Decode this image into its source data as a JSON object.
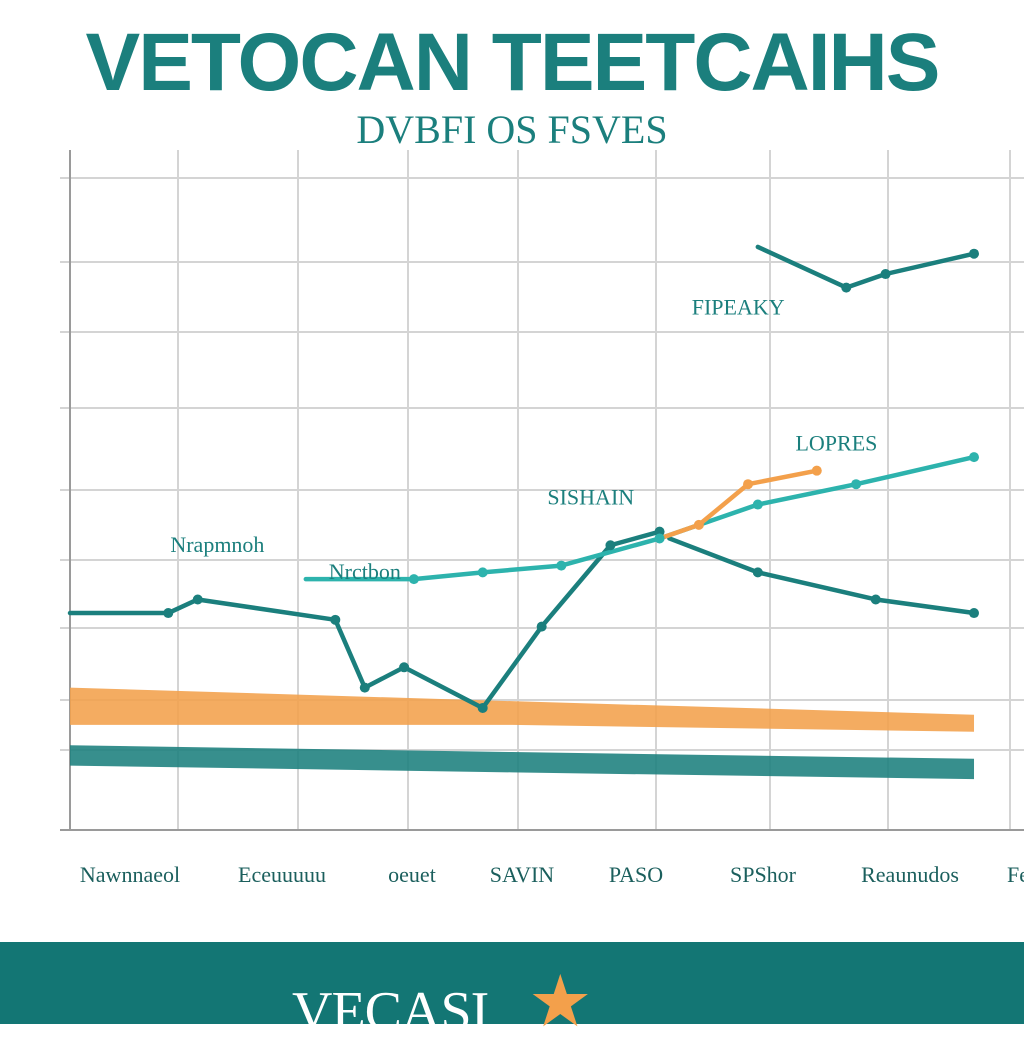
{
  "header": {
    "title": "VETOCAN TEETCAIHS",
    "subtitle": "DVBFI OS FSVES"
  },
  "footer": {
    "brand": "VECASI",
    "star_icon": "star-icon"
  },
  "colors": {
    "teal": "#1b7f7d",
    "teal_light": "#2db3ad",
    "orange": "#f3a04b",
    "grid": "#d4d4d4",
    "footer_bg": "#137674"
  },
  "chart_data": {
    "type": "line",
    "title": "VETOCAN TEETCAIHS",
    "subtitle": "DVBFI OS FSVES",
    "xlabel": "",
    "ylabel": "",
    "grid": true,
    "xlim": [
      0,
      10
    ],
    "ylim": [
      0,
      10
    ],
    "x_tick_labels": [
      "Nawnnaeol",
      "Eceuuuuu",
      "oeuet",
      "SAVIN",
      "PASO",
      "SPShor",
      "Reaunudos",
      "Fe"
    ],
    "annotations": [
      {
        "text": "Nrapmnoh",
        "x": 1.5,
        "y": 4.1
      },
      {
        "text": "Nrctbon",
        "x": 3.0,
        "y": 3.7
      },
      {
        "text": "SISHAIN",
        "x": 5.3,
        "y": 4.8
      },
      {
        "text": "FIPEAKY",
        "x": 6.8,
        "y": 7.6
      },
      {
        "text": "LOPRES",
        "x": 7.8,
        "y": 5.6
      }
    ],
    "series": [
      {
        "color": "#1b7f7d",
        "role": "main-line",
        "points": [
          [
            0.0,
            3.2
          ],
          [
            1.0,
            3.2
          ],
          [
            1.3,
            3.4
          ],
          [
            2.7,
            3.1
          ],
          [
            3.0,
            2.1
          ],
          [
            3.4,
            2.4
          ],
          [
            4.2,
            1.8
          ],
          [
            4.8,
            3.0
          ],
          [
            5.5,
            4.2
          ],
          [
            6.0,
            4.4
          ]
        ]
      },
      {
        "color": "#1b7f7d",
        "role": "right-line",
        "points": [
          [
            6.1,
            4.3
          ],
          [
            7.0,
            3.8
          ],
          [
            8.2,
            3.4
          ],
          [
            9.2,
            3.2
          ]
        ]
      },
      {
        "color": "#1b7f7d",
        "role": "top-line",
        "points": [
          [
            7.0,
            8.6
          ],
          [
            7.9,
            8.0
          ],
          [
            8.3,
            8.2
          ],
          [
            9.2,
            8.5
          ]
        ]
      },
      {
        "color": "#2db3ad",
        "role": "upper-line",
        "points": [
          [
            2.4,
            3.7
          ],
          [
            3.5,
            3.7
          ],
          [
            4.2,
            3.8
          ],
          [
            5.0,
            3.9
          ],
          [
            6.0,
            4.3
          ],
          [
            7.0,
            4.8
          ],
          [
            8.0,
            5.1
          ],
          [
            9.2,
            5.5
          ]
        ]
      },
      {
        "color": "#f3a04b",
        "role": "orange-line",
        "points": [
          [
            6.0,
            4.3
          ],
          [
            6.4,
            4.5
          ],
          [
            6.9,
            5.1
          ],
          [
            7.6,
            5.3
          ]
        ]
      }
    ],
    "bands": [
      {
        "color": "#f3a04b",
        "values": [
          [
            0.0,
            2.1,
            1.55
          ],
          [
            4.5,
            1.9,
            1.55
          ],
          [
            9.2,
            1.7,
            1.45
          ]
        ]
      },
      {
        "color": "#1b7f7d",
        "values": [
          [
            0.0,
            1.25,
            0.95
          ],
          [
            4.5,
            1.15,
            0.85
          ],
          [
            9.2,
            1.05,
            0.75
          ]
        ]
      }
    ]
  }
}
